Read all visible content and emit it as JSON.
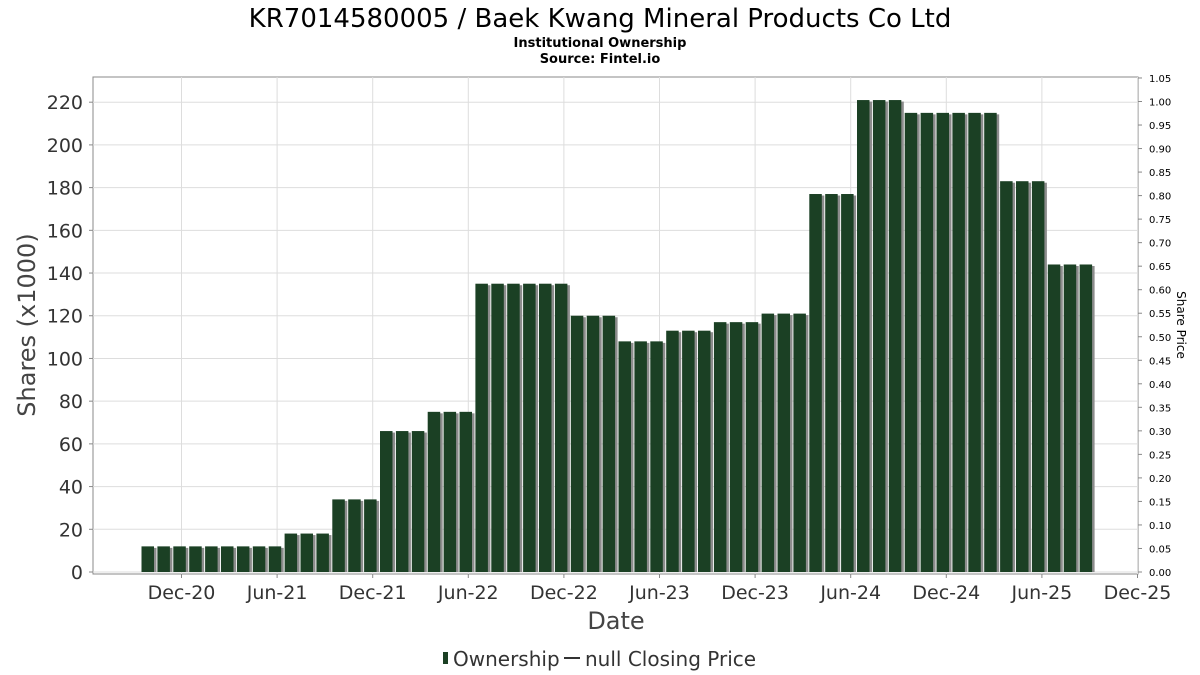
{
  "chart_data": {
    "type": "bar",
    "title": "KR7014580005 / Baek Kwang Mineral Products Co Ltd",
    "subtitle_lines": [
      "Institutional Ownership",
      "Source: Fintel.io"
    ],
    "xlabel": "Date",
    "ylabel": "Shares (x1000)",
    "ylabel_right": "Share Price",
    "ylim": [
      0,
      230
    ],
    "ylim_right": [
      0,
      1.05
    ],
    "y_ticks": [
      "0",
      "20",
      "40",
      "60",
      "80",
      "100",
      "120",
      "140",
      "160",
      "180",
      "200",
      "220"
    ],
    "y_ticks_right": [
      "0.00",
      "0.05",
      "0.10",
      "0.15",
      "0.20",
      "0.25",
      "0.30",
      "0.35",
      "0.40",
      "0.45",
      "0.50",
      "0.55",
      "0.60",
      "0.65",
      "0.70",
      "0.75",
      "0.80",
      "0.85",
      "0.90",
      "0.95",
      "1.00",
      "1.05"
    ],
    "x_ticks": [
      "Dec-20",
      "Jun-21",
      "Dec-21",
      "Jun-22",
      "Dec-22",
      "Jun-23",
      "Dec-23",
      "Jun-24",
      "Dec-24",
      "Jun-25",
      "Dec-25"
    ],
    "grid": true,
    "legend_position": "bottom-center",
    "colors": {
      "bar": "#1b4024",
      "bar_shadow": "#8c8c8c",
      "grid": "#dddddd",
      "axis": "#888888"
    },
    "series": [
      {
        "name": "Ownership",
        "values": [
          12,
          12,
          12,
          12,
          12,
          12,
          12,
          12,
          12,
          18,
          18,
          18,
          34,
          34,
          34,
          66,
          66,
          66,
          75,
          75,
          75,
          135,
          135,
          135,
          135,
          135,
          135,
          120,
          120,
          120,
          108,
          108,
          108,
          113,
          113,
          113,
          117,
          117,
          117,
          121,
          121,
          121,
          177,
          177,
          177,
          221,
          221,
          221,
          215,
          215,
          215,
          215,
          215,
          215,
          183,
          183,
          183,
          144,
          144,
          144
        ]
      },
      {
        "name": "null Closing Price",
        "values": []
      }
    ]
  }
}
